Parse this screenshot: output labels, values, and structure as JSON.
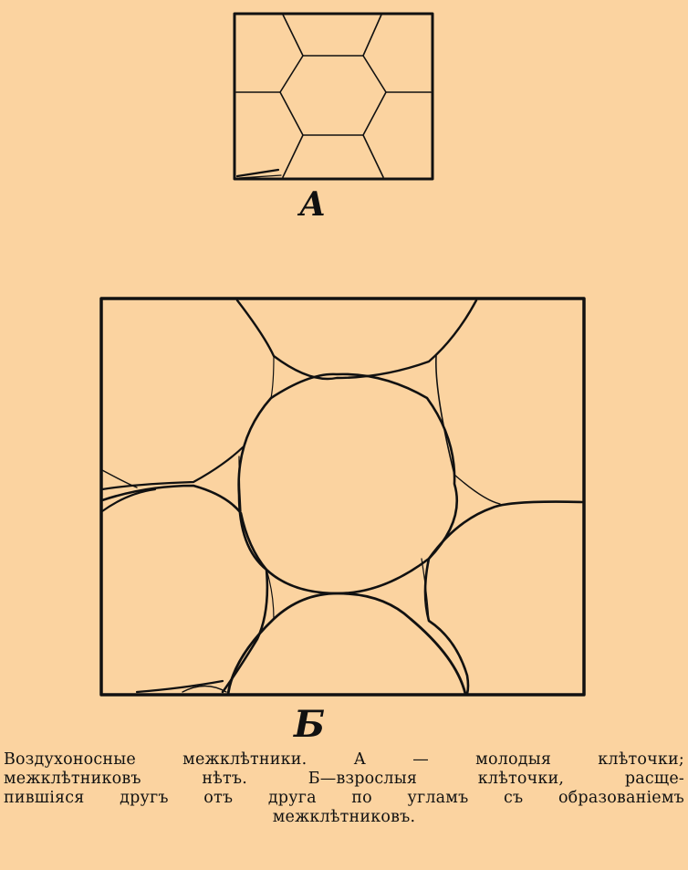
{
  "figure": {
    "label_a": "А",
    "label_b": "Б"
  },
  "caption": {
    "line1": "Воздухоносные межклѣтники. А — молодыя клѣточки;",
    "line2": "межклѣтниковъ нѣтъ. Б—взрослыя клѣточки, расще-",
    "line3": "пившiяся другъ отъ друга по угламъ съ образованiемъ",
    "line4": "межклѣтниковъ."
  },
  "colors": {
    "background": "#fbd3a0",
    "ink": "#111111"
  }
}
